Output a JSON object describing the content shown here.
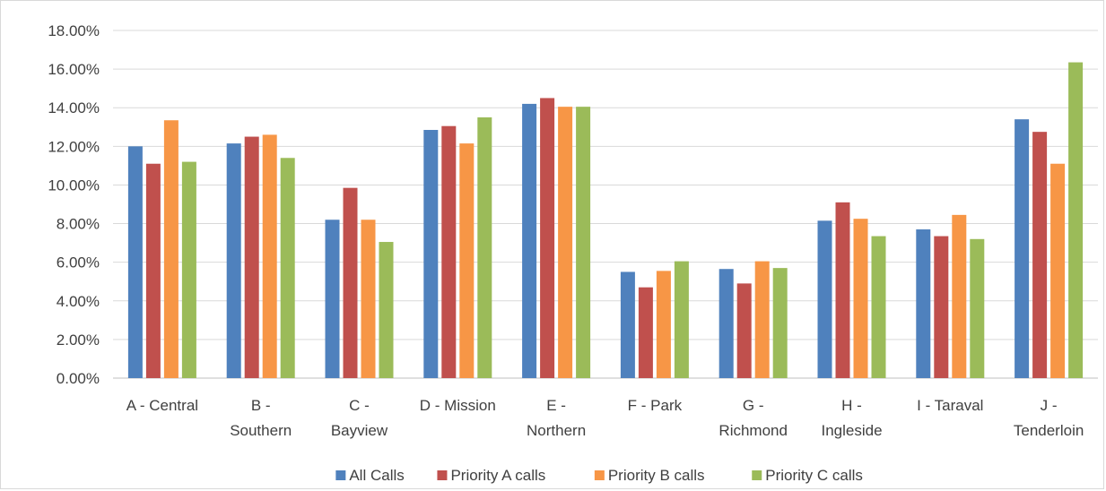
{
  "chart_data": {
    "type": "bar",
    "title": "",
    "xlabel": "",
    "ylabel": "",
    "ylim": [
      0,
      0.18
    ],
    "yticks": [
      "0.00%",
      "2.00%",
      "4.00%",
      "6.00%",
      "8.00%",
      "10.00%",
      "12.00%",
      "14.00%",
      "16.00%",
      "18.00%"
    ],
    "categories": [
      [
        "A - Central"
      ],
      [
        "B -",
        "Southern"
      ],
      [
        "C -",
        "Bayview"
      ],
      [
        "D - Mission"
      ],
      [
        "E -",
        "Northern"
      ],
      [
        "F - Park"
      ],
      [
        "G -",
        "Richmond"
      ],
      [
        "H -",
        "Ingleside"
      ],
      [
        "I - Taraval"
      ],
      [
        "J -",
        "Tenderloin"
      ]
    ],
    "grid": true,
    "legend_position": "bottom",
    "series": [
      {
        "name": "All Calls",
        "color": "#4f81bd",
        "values": [
          0.12,
          0.1215,
          0.082,
          0.1285,
          0.142,
          0.055,
          0.0565,
          0.0815,
          0.077,
          0.134
        ]
      },
      {
        "name": "Priority A calls",
        "color": "#c0504d",
        "values": [
          0.111,
          0.125,
          0.0985,
          0.1305,
          0.145,
          0.047,
          0.049,
          0.091,
          0.0735,
          0.1275
        ]
      },
      {
        "name": "Priority B calls",
        "color": "#f79646",
        "values": [
          0.1335,
          0.126,
          0.082,
          0.1215,
          0.1405,
          0.0555,
          0.0605,
          0.0825,
          0.0845,
          0.111
        ]
      },
      {
        "name": "Priority C calls",
        "color": "#9bbb59",
        "values": [
          0.112,
          0.114,
          0.0705,
          0.135,
          0.1405,
          0.0605,
          0.057,
          0.0735,
          0.072,
          0.1635
        ]
      }
    ]
  }
}
